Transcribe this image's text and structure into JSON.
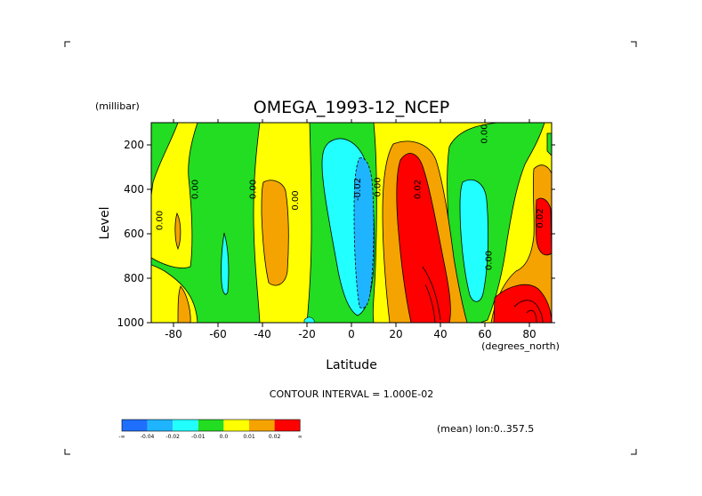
{
  "chart_data": {
    "type": "contour",
    "title": "OMEGA_1993-12_NCEP",
    "units_label": "(millibar)",
    "xlabel": "Latitude",
    "x_units": "(degrees_north)",
    "ylabel": "Level",
    "xlim": [
      -90,
      90
    ],
    "ylim": [
      1000,
      100
    ],
    "x_ticks": [
      -80,
      -60,
      -40,
      -20,
      0,
      20,
      40,
      60,
      80
    ],
    "y_ticks": [
      200,
      400,
      600,
      800,
      1000
    ],
    "contour_interval_text": "CONTOUR INTERVAL = 1.000E-02",
    "footnote": "(mean) lon:0..357.5",
    "colorbar": {
      "labels": [
        "-∞",
        "-0.04",
        "-0.02",
        "-0.01",
        "0.0",
        "0.01",
        "0.02",
        "∞"
      ],
      "colors": [
        "#1f6fff",
        "#1fb4ff",
        "#22ffff",
        "#22dd22",
        "#ffff00",
        "#f5a300",
        "#ff0000"
      ]
    },
    "contour_labels": [
      {
        "text": "0.00",
        "lat": -85,
        "p": 540
      },
      {
        "text": "0.00",
        "lat": -69,
        "p": 400
      },
      {
        "text": "0.00",
        "lat": -43,
        "p": 400
      },
      {
        "text": "0.00",
        "lat": -24,
        "p": 450
      },
      {
        "text": "-0.02",
        "lat": 4,
        "p": 400
      },
      {
        "text": "0.00",
        "lat": 13,
        "p": 390
      },
      {
        "text": "0.02",
        "lat": 31,
        "p": 400
      },
      {
        "text": "0.00",
        "lat": 61,
        "p": 150
      },
      {
        "text": "0.00",
        "lat": 63,
        "p": 720
      },
      {
        "text": "0.02",
        "lat": 86,
        "p": 530
      }
    ],
    "regions": [
      {
        "value": "positive",
        "lat_range": [
          -90,
          -82
        ],
        "p_range": [
          100,
          1000
        ]
      },
      {
        "value": "negative",
        "lat_range": [
          -78,
          -58
        ],
        "p_range": [
          100,
          1000
        ]
      },
      {
        "value": "positive",
        "lat_range": [
          -47,
          -30
        ],
        "p_range": [
          100,
          1000
        ]
      },
      {
        "value": "negative",
        "lat_range": [
          -30,
          10
        ],
        "p_range": [
          100,
          1000
        ]
      },
      {
        "value": "strong-negative",
        "lat_range": [
          -10,
          10
        ],
        "p_range": [
          200,
          900
        ]
      },
      {
        "value": "strong-positive",
        "lat_range": [
          18,
          40
        ],
        "p_range": [
          250,
          1000
        ]
      },
      {
        "value": "negative",
        "lat_range": [
          43,
          75
        ],
        "p_range": [
          100,
          1000
        ]
      },
      {
        "value": "strong-positive",
        "lat_range": [
          60,
          90
        ],
        "p_range": [
          250,
          1000
        ]
      }
    ]
  }
}
